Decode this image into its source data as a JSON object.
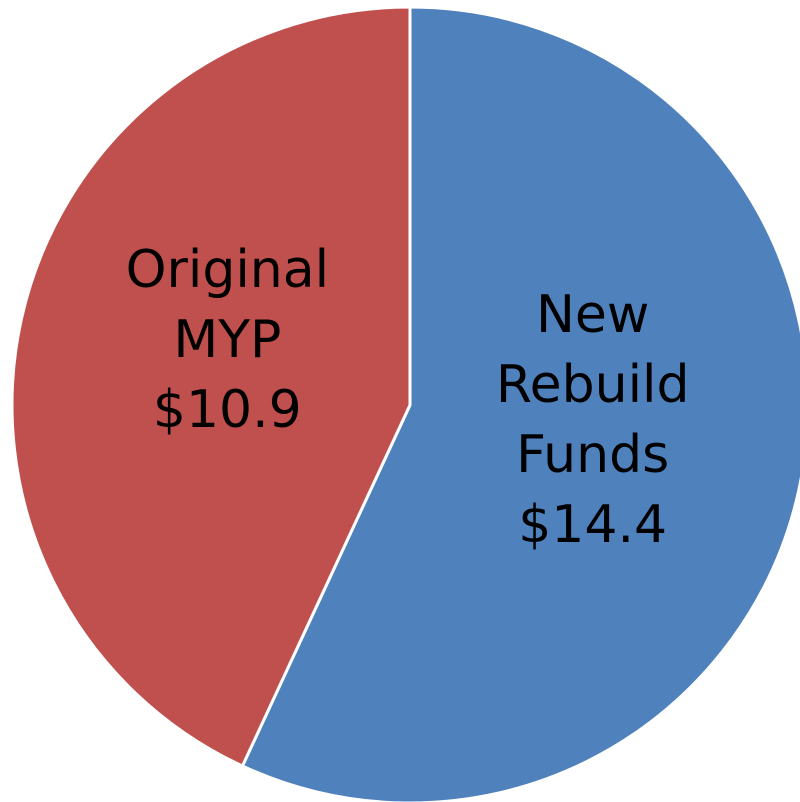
{
  "chart_data": {
    "type": "pie",
    "categories": [
      "New Rebuild Funds",
      "Original MYP"
    ],
    "values": [
      14.4,
      10.9
    ],
    "value_labels": [
      "$14.4",
      "$10.9"
    ],
    "colors": [
      "#4f81bd",
      "#c0504d"
    ],
    "start_angle": 0,
    "direction": "clockwise"
  }
}
